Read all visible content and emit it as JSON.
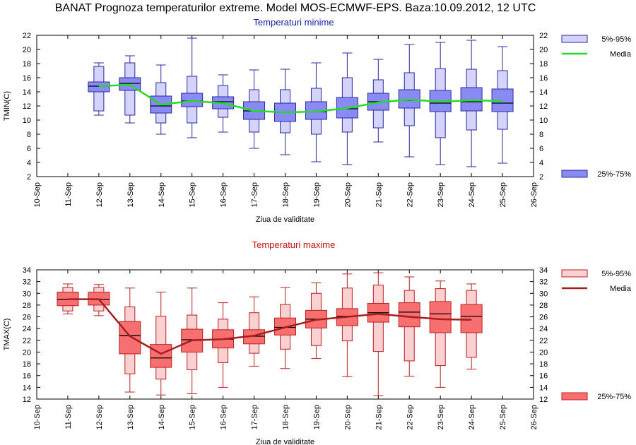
{
  "main_title": "BANAT  Prognoza temperaturilor extreme.  Model MOS-ECMWF-EPS. Baza:10.09.2012, 12 UTC",
  "x_dates": [
    "10-Sep",
    "11-Sep",
    "12-Sep",
    "13-Sep",
    "14-Sep",
    "15-Sep",
    "16-Sep",
    "17-Sep",
    "18-Sep",
    "19-Sep",
    "20-Sep",
    "21-Sep",
    "22-Sep",
    "23-Sep",
    "24-Sep",
    "25-Sep",
    "26-Sep"
  ],
  "chart_data": [
    {
      "type": "boxplot",
      "id": "tmin",
      "title": "Temperaturi minime",
      "ylabel": "TMIN(C)",
      "xlabel": "Ziua de validitate",
      "ylim": [
        2,
        22
      ],
      "yticks": [
        2,
        4,
        6,
        8,
        10,
        12,
        14,
        16,
        18,
        20,
        22
      ],
      "legend": {
        "outer": "5%-95%",
        "mean": "Media",
        "inner": "25%-75%"
      },
      "colors": {
        "inner_fill": "#8a8af5",
        "outer_fill": "#d4d4fb",
        "stroke": "#2a2aa0",
        "median": "#000000",
        "mean": "#22dd22",
        "title": "#1a1aaa"
      },
      "boxes": [
        {
          "day": 2,
          "min": 10.7,
          "p5": 11.3,
          "p25": 14.0,
          "median": 14.8,
          "p75": 15.4,
          "p95": 17.6,
          "max": 18.1,
          "mean": 14.8
        },
        {
          "day": 3,
          "min": 9.6,
          "p5": 10.7,
          "p25": 14.2,
          "median": 15.2,
          "p75": 16.0,
          "p95": 18.1,
          "max": 19.1,
          "mean": 15.0
        },
        {
          "day": 4,
          "min": 8.0,
          "p5": 9.6,
          "p25": 11.0,
          "median": 12.0,
          "p75": 13.4,
          "p95": 15.3,
          "max": 17.8,
          "mean": 12.2
        },
        {
          "day": 5,
          "min": 7.5,
          "p5": 9.6,
          "p25": 11.9,
          "median": 12.7,
          "p75": 13.8,
          "p95": 16.2,
          "max": 21.6,
          "mean": 12.7
        },
        {
          "day": 6,
          "min": 8.3,
          "p5": 10.4,
          "p25": 11.6,
          "median": 12.6,
          "p75": 13.3,
          "p95": 14.9,
          "max": 16.4,
          "mean": 12.4
        },
        {
          "day": 7,
          "min": 6.0,
          "p5": 8.3,
          "p25": 10.1,
          "median": 11.3,
          "p75": 12.6,
          "p95": 14.3,
          "max": 17.1,
          "mean": 11.3
        },
        {
          "day": 8,
          "min": 5.1,
          "p5": 8.2,
          "p25": 9.8,
          "median": 11.1,
          "p75": 12.4,
          "p95": 14.3,
          "max": 17.2,
          "mean": 11.1
        },
        {
          "day": 9,
          "min": 4.1,
          "p5": 8.0,
          "p25": 10.1,
          "median": 11.2,
          "p75": 12.6,
          "p95": 14.5,
          "max": 18.1,
          "mean": 11.2
        },
        {
          "day": 10,
          "min": 3.7,
          "p5": 8.3,
          "p25": 10.3,
          "median": 11.6,
          "p75": 13.2,
          "p95": 16.0,
          "max": 19.5,
          "mean": 11.7
        },
        {
          "day": 11,
          "min": 6.9,
          "p5": 8.9,
          "p25": 11.4,
          "median": 12.6,
          "p75": 13.8,
          "p95": 15.7,
          "max": 18.6,
          "mean": 12.5
        },
        {
          "day": 12,
          "min": 4.8,
          "p5": 9.2,
          "p25": 11.7,
          "median": 12.8,
          "p75": 14.3,
          "p95": 16.7,
          "max": 20.7,
          "mean": 12.9
        },
        {
          "day": 13,
          "min": 3.7,
          "p5": 7.5,
          "p25": 11.2,
          "median": 12.4,
          "p75": 14.2,
          "p95": 17.3,
          "max": 21.0,
          "mean": 12.6
        },
        {
          "day": 14,
          "min": 3.4,
          "p5": 8.6,
          "p25": 11.3,
          "median": 12.6,
          "p75": 14.6,
          "p95": 17.2,
          "max": 21.3,
          "mean": 12.8
        },
        {
          "day": 15,
          "min": 3.9,
          "p5": 8.7,
          "p25": 11.2,
          "median": 12.4,
          "p75": 14.4,
          "p95": 17.0,
          "max": 20.4,
          "mean": 12.7
        }
      ]
    },
    {
      "type": "boxplot",
      "id": "tmax",
      "title": "Temperaturi maxime",
      "ylabel": "TMAX(C)",
      "xlabel": "Ziua de validitate",
      "ylim": [
        12,
        34
      ],
      "yticks": [
        12,
        14,
        16,
        18,
        20,
        22,
        24,
        26,
        28,
        30,
        32,
        34
      ],
      "legend": {
        "outer": "5%-95%",
        "mean": "Media",
        "inner": "25%-75%"
      },
      "colors": {
        "inner_fill": "#f76f6f",
        "outer_fill": "#fbd0d0",
        "stroke": "#b82020",
        "median": "#000000",
        "mean": "#a61e1e",
        "title": "#cc1111"
      },
      "boxes": [
        {
          "day": 1,
          "min": 26.5,
          "p5": 27.0,
          "p25": 27.9,
          "median": 29.0,
          "p75": 30.2,
          "p95": 31.0,
          "max": 31.6,
          "mean": 29.0
        },
        {
          "day": 2,
          "min": 26.2,
          "p5": 27.0,
          "p25": 28.0,
          "median": 29.0,
          "p75": 30.2,
          "p95": 31.0,
          "max": 31.5,
          "mean": 29.0
        },
        {
          "day": 3,
          "min": 13.2,
          "p5": 16.3,
          "p25": 19.7,
          "median": 22.8,
          "p75": 25.2,
          "p95": 27.7,
          "max": 30.9,
          "mean": 22.7
        },
        {
          "day": 4,
          "min": 12.7,
          "p5": 15.4,
          "p25": 17.4,
          "median": 19.0,
          "p75": 21.3,
          "p95": 26.1,
          "max": 30.2,
          "mean": 19.7
        },
        {
          "day": 5,
          "min": 12.9,
          "p5": 17.0,
          "p25": 20.0,
          "median": 22.1,
          "p75": 23.9,
          "p95": 26.3,
          "max": 30.9,
          "mean": 22.0
        },
        {
          "day": 6,
          "min": 14.0,
          "p5": 18.2,
          "p25": 20.7,
          "median": 22.2,
          "p75": 23.8,
          "p95": 25.6,
          "max": 28.4,
          "mean": 22.2
        },
        {
          "day": 7,
          "min": 17.6,
          "p5": 19.8,
          "p25": 21.4,
          "median": 22.7,
          "p75": 23.8,
          "p95": 26.7,
          "max": 29.4,
          "mean": 22.8
        },
        {
          "day": 8,
          "min": 17.2,
          "p5": 20.5,
          "p25": 22.9,
          "median": 24.2,
          "p75": 25.8,
          "p95": 28.1,
          "max": 31.0,
          "mean": 24.2
        },
        {
          "day": 9,
          "min": 18.9,
          "p5": 21.1,
          "p25": 24.1,
          "median": 25.6,
          "p75": 27.1,
          "p95": 30.0,
          "max": 31.8,
          "mean": 25.5
        },
        {
          "day": 10,
          "min": 15.8,
          "p5": 21.9,
          "p25": 24.5,
          "median": 26.1,
          "p75": 27.4,
          "p95": 30.9,
          "max": 33.3,
          "mean": 26.0
        },
        {
          "day": 11,
          "min": 12.6,
          "p5": 20.1,
          "p25": 25.1,
          "median": 26.7,
          "p75": 28.3,
          "p95": 31.4,
          "max": 33.5,
          "mean": 26.5
        },
        {
          "day": 12,
          "min": 15.9,
          "p5": 18.5,
          "p25": 24.3,
          "median": 26.8,
          "p75": 28.4,
          "p95": 30.5,
          "max": 32.8,
          "mean": 26.0
        },
        {
          "day": 13,
          "min": 14.0,
          "p5": 17.7,
          "p25": 23.3,
          "median": 26.5,
          "p75": 28.6,
          "p95": 30.8,
          "max": 32.1,
          "mean": 25.6
        },
        {
          "day": 14,
          "min": 17.1,
          "p5": 19.1,
          "p25": 23.3,
          "median": 26.1,
          "p75": 28.1,
          "p95": 30.5,
          "max": 31.6,
          "mean": 25.5
        }
      ]
    }
  ]
}
